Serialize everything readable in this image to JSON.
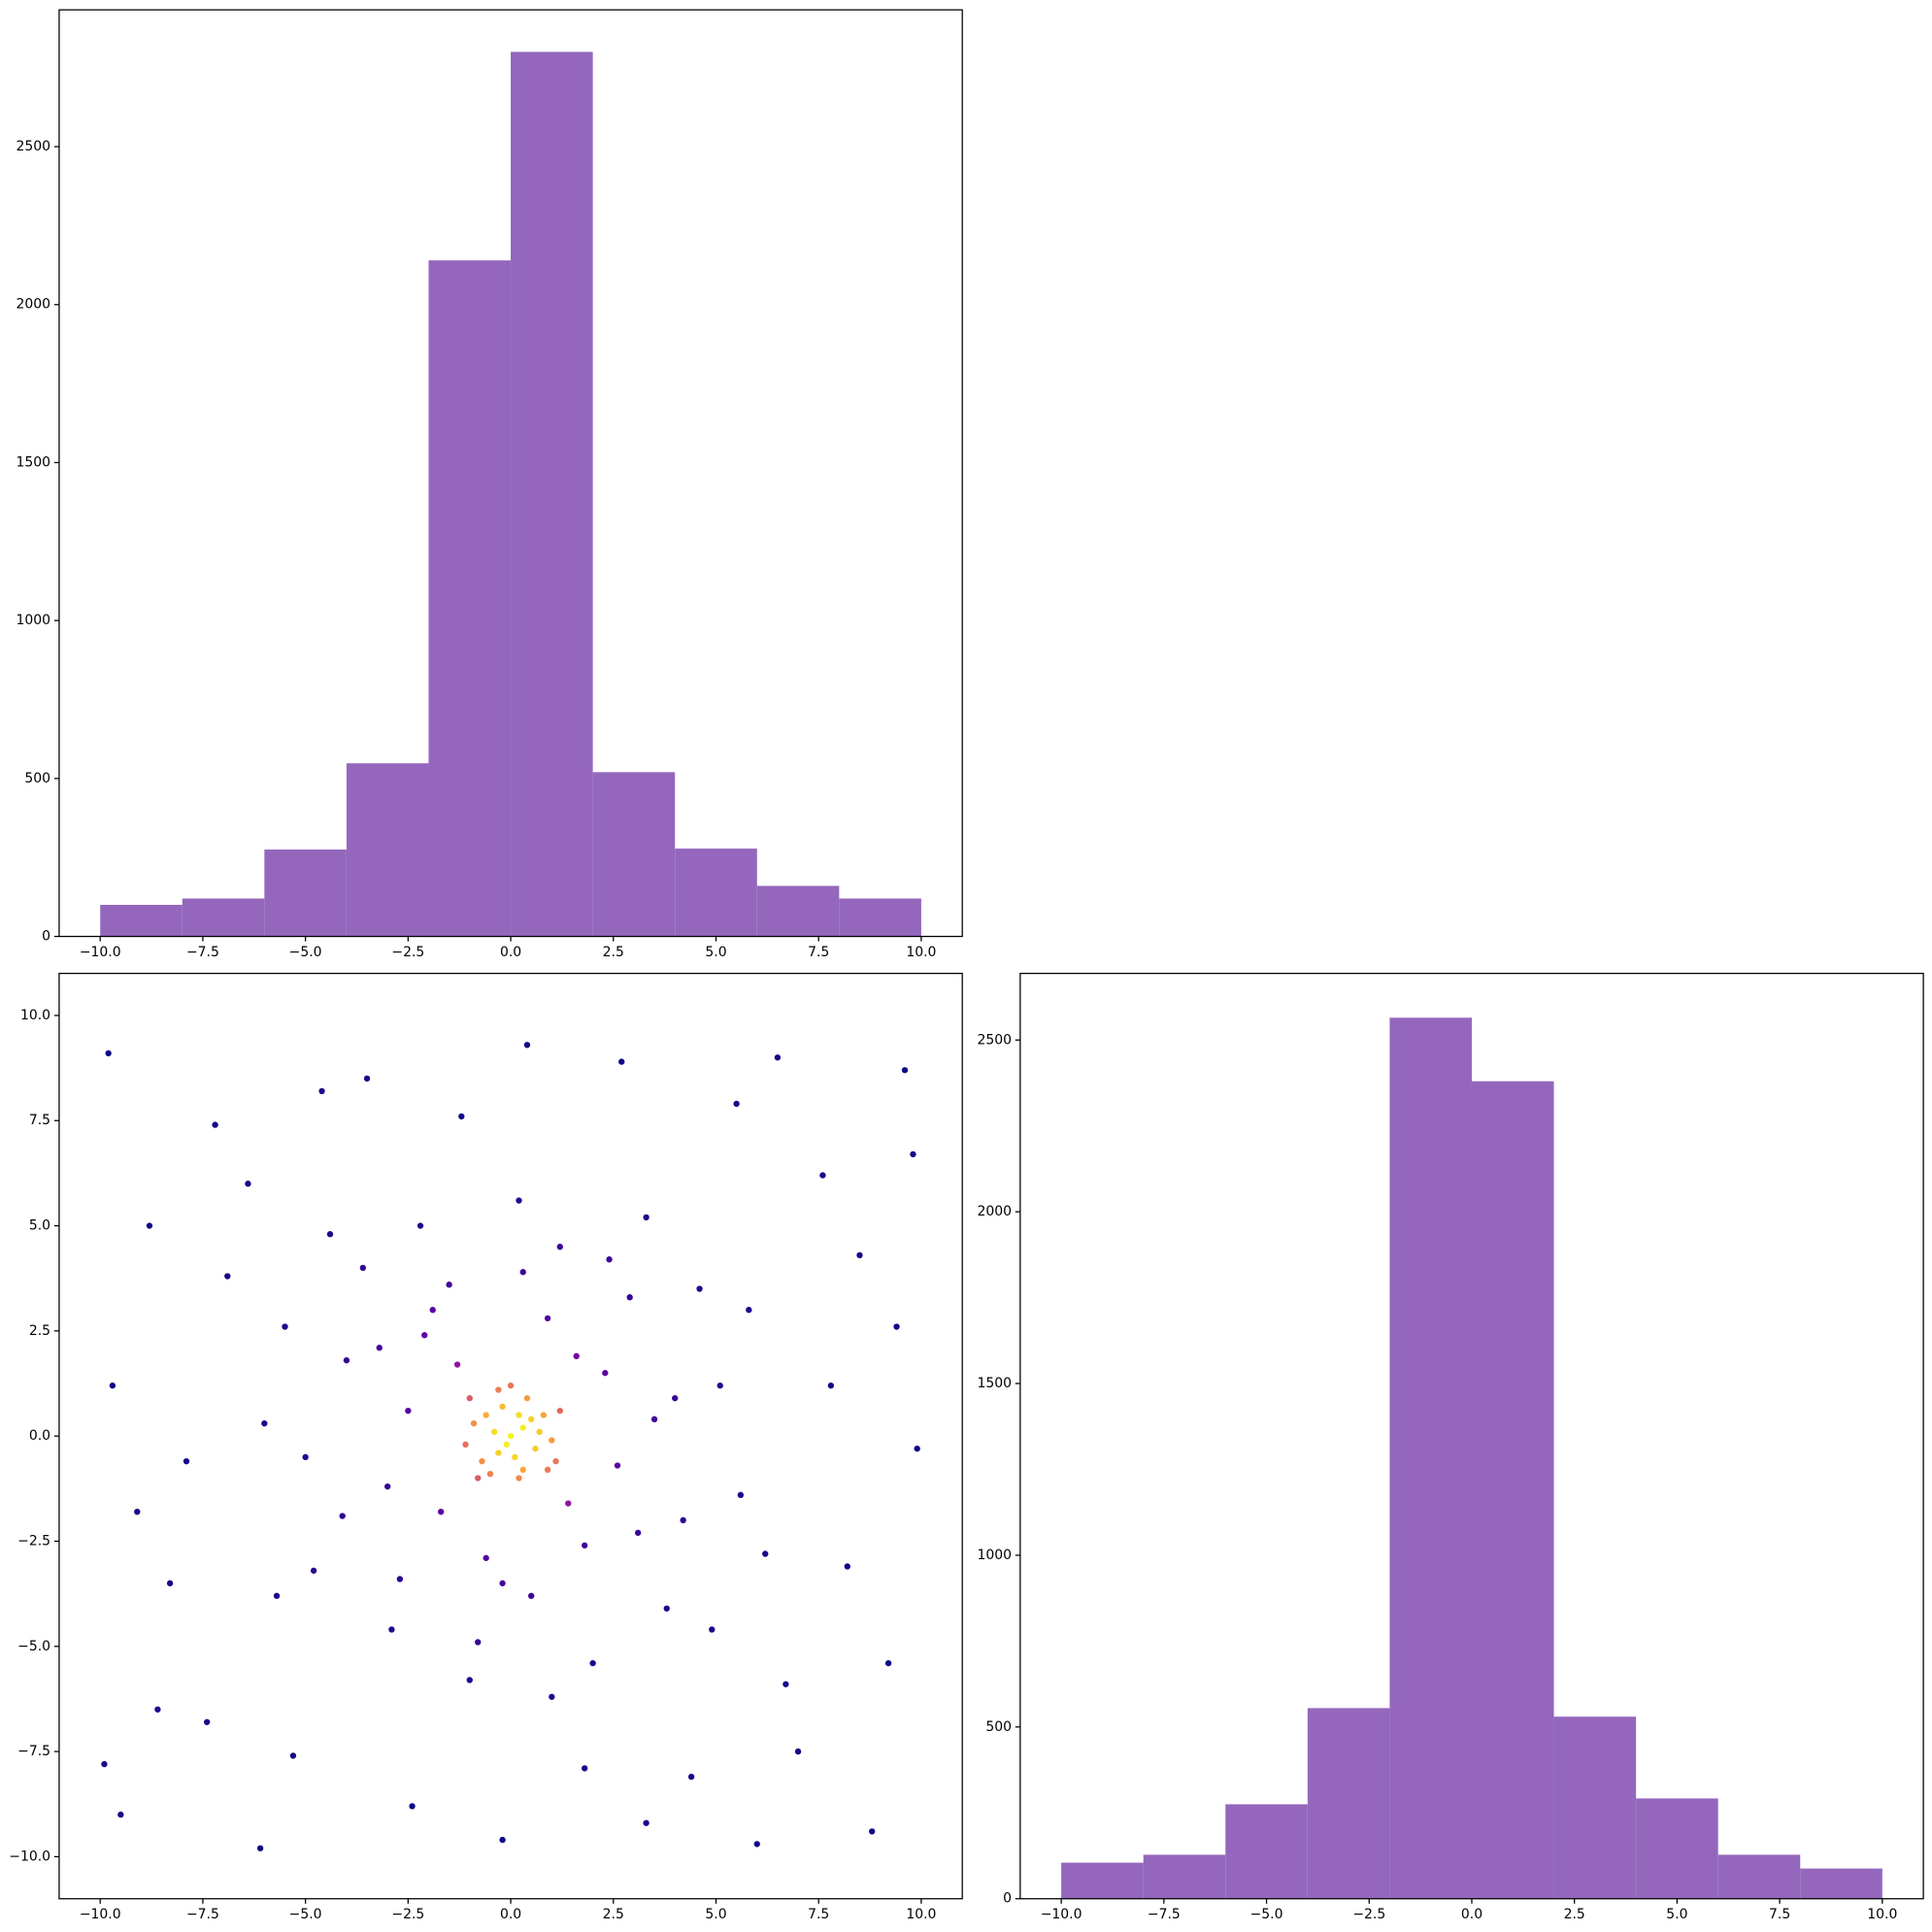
{
  "chart_data": [
    {
      "type": "histogram",
      "color": "#9467bd",
      "bins": [
        -10,
        -8,
        -6,
        -4,
        -2,
        0,
        2,
        4,
        6,
        8,
        10
      ],
      "values": [
        100,
        120,
        275,
        548,
        2140,
        2800,
        520,
        278,
        160,
        120
      ],
      "xlim": [
        -11,
        11
      ],
      "ylim": [
        0,
        2933
      ],
      "xticks": [
        {
          "value": -10,
          "label": "−10.0"
        },
        {
          "value": -7.5,
          "label": "−7.5"
        },
        {
          "value": -5,
          "label": "−5.0"
        },
        {
          "value": -2.5,
          "label": "−2.5"
        },
        {
          "value": 0,
          "label": "0.0"
        },
        {
          "value": 2.5,
          "label": "2.5"
        },
        {
          "value": 5,
          "label": "5.0"
        },
        {
          "value": 7.5,
          "label": "7.5"
        },
        {
          "value": 10,
          "label": "10.0"
        }
      ],
      "yticks": [
        0,
        500,
        1000,
        1500,
        2000,
        2500
      ]
    },
    {
      "type": "scatter",
      "colormap": "plasma",
      "x": [
        0,
        0.3,
        -0.4,
        0.1,
        0.6,
        -0.2,
        0.8,
        -0.7,
        0.4,
        -0.9,
        0.2,
        1.0,
        -0.5,
        -1.1,
        0.9,
        -0.3,
        0.5,
        -0.1,
        0.2,
        -0.6,
        0.7,
        -0.3,
        1.2,
        -1.0,
        0.0,
        0.3,
        -0.8,
        1.1,
        2.3,
        -2.1,
        1.8,
        -3.0,
        3.5,
        -1.5,
        0.5,
        4.2,
        -4.0,
        2.9,
        -2.7,
        1.2,
        -0.8,
        5.1,
        -5.0,
        3.8,
        -3.6,
        4.6,
        -4.8,
        0.2,
        2.0,
        -2.2,
        5.6,
        -5.5,
        1.6,
        -1.7,
        2.6,
        -2.5,
        0.9,
        -0.6,
        3.1,
        -3.2,
        1.4,
        -1.3,
        4.0,
        -4.1,
        0.3,
        -0.2,
        2.4,
        -2.9,
        5.8,
        -6.0,
        3.3,
        -1.0,
        6.2,
        -5.7,
        4.9,
        -4.4,
        1.0,
        -1.9,
        -9.8,
        -8.6,
        9.6,
        8.8,
        -7.2,
        7.0,
        -9.5,
        9.9,
        -9.7,
        0.4,
        -0.2,
        6.5,
        -6.1,
        -3.5,
        3.3,
        8.5,
        -8.3,
        9.2,
        -8.8,
        5.5,
        -5.3,
        7.6,
        -7.4,
        8.2,
        -6.9,
        2.7,
        -2.4,
        9.4,
        -9.1,
        7.8,
        -7.9,
        4.4,
        -4.6,
        6.7,
        -6.4,
        1.8,
        -1.2,
        9.8,
        -9.9,
        6.0
      ],
      "y": [
        0,
        0.2,
        0.1,
        -0.5,
        -0.3,
        0.7,
        0.5,
        -0.6,
        0.9,
        0.3,
        -1.0,
        -0.1,
        -0.9,
        -0.2,
        -0.8,
        1.1,
        0.4,
        -0.2,
        0.5,
        0.5,
        0.1,
        -0.4,
        0.6,
        0.9,
        1.2,
        -0.8,
        -1.0,
        -0.6,
        1.5,
        2.4,
        -2.6,
        -1.2,
        0.4,
        3.6,
        -3.8,
        -2.0,
        1.8,
        3.3,
        -3.4,
        4.5,
        -4.9,
        1.2,
        -0.5,
        -4.1,
        4.0,
        3.5,
        -3.2,
        5.6,
        -5.4,
        5.0,
        -1.4,
        2.6,
        1.9,
        -1.8,
        -0.7,
        0.6,
        2.8,
        -2.9,
        -2.3,
        2.1,
        -1.6,
        1.7,
        0.9,
        -1.9,
        3.9,
        -3.5,
        4.2,
        -4.6,
        3.0,
        0.3,
        5.2,
        -5.8,
        -2.8,
        -3.8,
        -4.6,
        4.8,
        -6.2,
        3.0,
        9.1,
        -6.5,
        8.7,
        -9.4,
        7.4,
        -7.5,
        -9.0,
        -0.3,
        1.2,
        9.3,
        -9.6,
        9.0,
        -9.8,
        8.5,
        -9.2,
        4.3,
        -3.5,
        -5.4,
        5.0,
        7.9,
        -7.6,
        6.2,
        -6.8,
        -3.1,
        3.8,
        8.9,
        -8.8,
        2.6,
        -1.8,
        1.2,
        -0.6,
        -8.1,
        8.2,
        -5.9,
        6.0,
        -7.9,
        7.6,
        6.7,
        -7.8,
        -9.7
      ],
      "xlim": [
        -11,
        11
      ],
      "ylim": [
        -11,
        11
      ],
      "xticks": [
        {
          "value": -10,
          "label": "−10.0"
        },
        {
          "value": -7.5,
          "label": "−7.5"
        },
        {
          "value": -5,
          "label": "−5.0"
        },
        {
          "value": -2.5,
          "label": "−2.5"
        },
        {
          "value": 0,
          "label": "0.0"
        },
        {
          "value": 2.5,
          "label": "2.5"
        },
        {
          "value": 5,
          "label": "5.0"
        },
        {
          "value": 7.5,
          "label": "7.5"
        },
        {
          "value": 10,
          "label": "10.0"
        }
      ],
      "yticks": [
        {
          "value": -10,
          "label": "−10.0"
        },
        {
          "value": -7.5,
          "label": "−7.5"
        },
        {
          "value": -5,
          "label": "−5.0"
        },
        {
          "value": -2.5,
          "label": "−2.5"
        },
        {
          "value": 0,
          "label": "0.0"
        },
        {
          "value": 2.5,
          "label": "2.5"
        },
        {
          "value": 5,
          "label": "5.0"
        },
        {
          "value": 7.5,
          "label": "7.5"
        },
        {
          "value": 10,
          "label": "10.0"
        }
      ]
    },
    {
      "type": "histogram",
      "color": "#9467bd",
      "bins": [
        -10,
        -8,
        -6,
        -4,
        -2,
        0,
        2,
        4,
        6,
        8,
        10
      ],
      "values": [
        105,
        128,
        275,
        555,
        2565,
        2380,
        530,
        292,
        128,
        88
      ],
      "xlim": [
        -11,
        11
      ],
      "ylim": [
        0,
        2694
      ],
      "xticks": [
        {
          "value": -10,
          "label": "−10.0"
        },
        {
          "value": -7.5,
          "label": "−7.5"
        },
        {
          "value": -5,
          "label": "−5.0"
        },
        {
          "value": -2.5,
          "label": "−2.5"
        },
        {
          "value": 0,
          "label": "0.0"
        },
        {
          "value": 2.5,
          "label": "2.5"
        },
        {
          "value": 5,
          "label": "5.0"
        },
        {
          "value": 7.5,
          "label": "7.5"
        },
        {
          "value": 10,
          "label": "10.0"
        }
      ],
      "yticks": [
        0,
        500,
        1000,
        1500,
        2000,
        2500
      ]
    }
  ]
}
